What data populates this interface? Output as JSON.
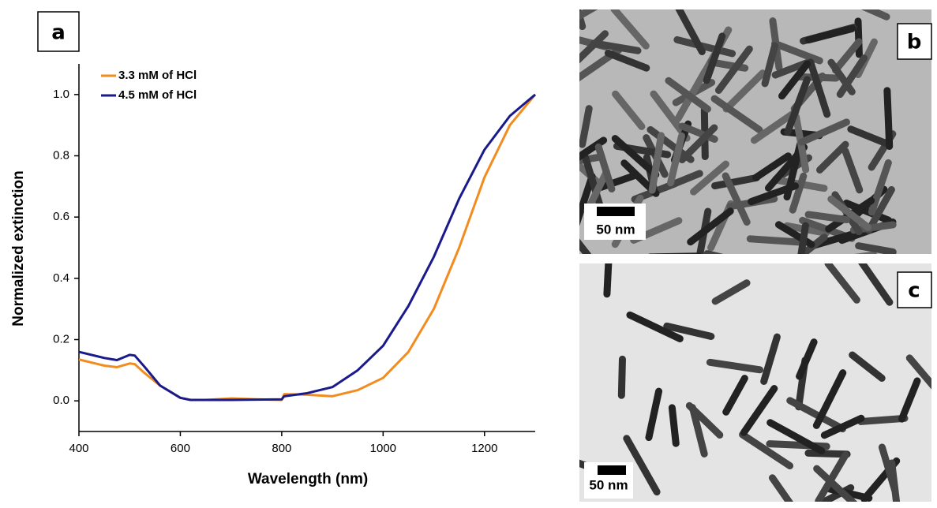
{
  "chart_data": {
    "type": "line",
    "xlabel": "Wavelength (nm)",
    "ylabel": "Normalized extinction",
    "x": [
      400,
      450,
      475,
      500,
      510,
      530,
      560,
      600,
      620,
      650,
      700,
      750,
      800,
      805,
      850,
      900,
      950,
      1000,
      1050,
      1100,
      1150,
      1200,
      1250,
      1300
    ],
    "series": [
      {
        "name": "3.3 mM of HCl",
        "color": "#f28c1e",
        "values": [
          0.135,
          0.115,
          0.11,
          0.122,
          0.12,
          0.09,
          0.05,
          0.01,
          0.003,
          0.003,
          0.008,
          0.005,
          0.003,
          0.022,
          0.02,
          0.015,
          0.035,
          0.075,
          0.16,
          0.3,
          0.5,
          0.73,
          0.9,
          1.0
        ]
      },
      {
        "name": "4.5 mM of HCl",
        "color": "#1a1a8c",
        "values": [
          0.16,
          0.14,
          0.133,
          0.15,
          0.148,
          0.11,
          0.05,
          0.01,
          0.003,
          0.003,
          0.003,
          0.004,
          0.005,
          0.015,
          0.025,
          0.045,
          0.1,
          0.18,
          0.31,
          0.47,
          0.66,
          0.82,
          0.93,
          1.0
        ]
      }
    ],
    "xlim": [
      400,
      1300
    ],
    "xticks": [
      400,
      600,
      800,
      1000,
      1200
    ],
    "ylim": [
      -0.1,
      1.1
    ],
    "yticks": [
      {
        "value": 0,
        "label": "0.0"
      },
      0.2,
      0.4,
      0.6,
      0.8,
      {
        "value": 1,
        "label": "1.0"
      }
    ],
    "legend": "upper left",
    "grid": false
  },
  "panel_labels": [
    "a",
    "b",
    "c"
  ],
  "scale_bars": [
    "50 nm",
    "50 nm"
  ]
}
